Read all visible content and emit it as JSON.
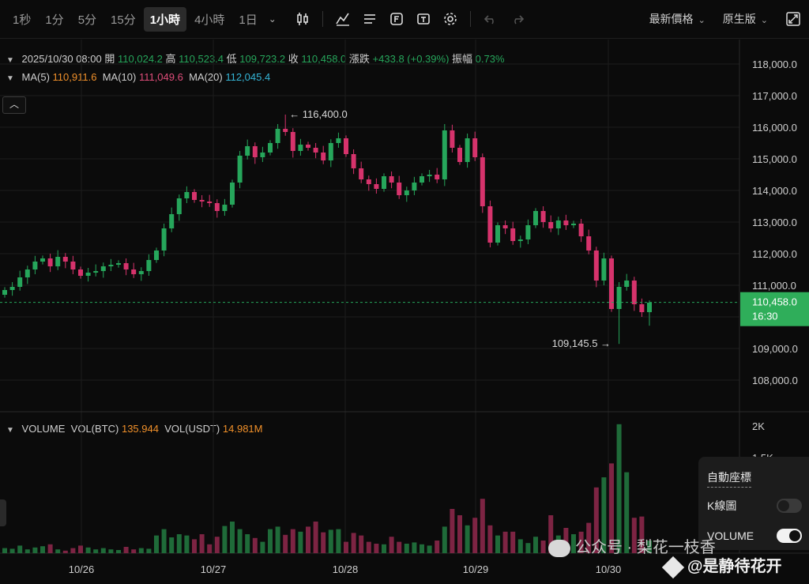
{
  "toolbar": {
    "timeframes": [
      "1秒",
      "1分",
      "5分",
      "15分",
      "1小時",
      "4小時",
      "1日"
    ],
    "active_index": 4,
    "price_type": "最新價格",
    "version": "原生版"
  },
  "info": {
    "datetime": "2025/10/30 08:00",
    "open_label": "開",
    "open": "110,024.2",
    "high_label": "高",
    "high": "110,523.4",
    "low_label": "低",
    "low": "109,723.2",
    "close_label": "收",
    "close": "110,458.0",
    "change_label": "漲跌",
    "change": "+433.8 (+0.39%)",
    "amp_label": "振幅",
    "amp": "0.73%",
    "ma5_label": "MA(5)",
    "ma5": "110,911.6",
    "ma10_label": "MA(10)",
    "ma10": "111,049.6",
    "ma20_label": "MA(20)",
    "ma20": "112,045.4",
    "vol_title": "VOLUME",
    "vol_btc_label": "VOL(BTC)",
    "vol_btc": "135.944",
    "vol_usdt_label": "VOL(USDT)",
    "vol_usdt": "14.981M"
  },
  "price_axis": [
    "118,000.0",
    "117,000.0",
    "116,000.0",
    "115,000.0",
    "114,000.0",
    "113,000.0",
    "112,000.0",
    "111,000.0",
    "109,000.0",
    "108,000.0"
  ],
  "price_axis_values": [
    118000,
    117000,
    116000,
    115000,
    114000,
    113000,
    112000,
    111000,
    109000,
    108000
  ],
  "current_price": "110,458.0",
  "countdown": "16:30",
  "high_marker": "116,400.0",
  "low_marker": "109,145.5",
  "volume_axis": [
    "2K",
    "1.5K"
  ],
  "date_labels": [
    "10/26",
    "10/27",
    "10/28",
    "10/29",
    "10/30"
  ],
  "settings": {
    "auto_scale": "自動座標",
    "kline_label": "K線圖",
    "kline_on": false,
    "volume_label": "VOLUME",
    "volume_on": true
  },
  "watermark": {
    "line1": "公众号 · 梨花一枝香",
    "line2": "@是静待花开"
  },
  "colors": {
    "up": "#26a65b",
    "down": "#d6336c",
    "volume_up": "#1f6b39",
    "volume_down": "#7d2443",
    "price_tag": "#2fae5a"
  },
  "chart_data": {
    "type": "candlestick",
    "interval": "1小時",
    "y_ticks": [
      108000,
      109000,
      110000,
      111000,
      112000,
      113000,
      114000,
      115000,
      116000,
      117000,
      118000
    ],
    "highest": 116400.0,
    "lowest": 109145.5,
    "last": 110458.0,
    "series_close": [
      110850,
      110950,
      111250,
      111500,
      111750,
      111850,
      111600,
      111900,
      111750,
      111500,
      111300,
      111400,
      111450,
      111600,
      111650,
      111700,
      111500,
      111350,
      111450,
      111800,
      112100,
      112800,
      113250,
      113750,
      113950,
      113700,
      113650,
      113600,
      113350,
      113550,
      114250,
      115100,
      115400,
      115050,
      115200,
      115500,
      115950,
      115850,
      115250,
      115450,
      115350,
      115200,
      114950,
      115500,
      115650,
      115150,
      114700,
      114350,
      114200,
      114050,
      114450,
      114250,
      113850,
      114000,
      114250,
      114450,
      114500,
      114350,
      115900,
      115350,
      114900,
      115650,
      115050,
      113500,
      112350,
      112900,
      112800,
      112400,
      112450,
      112900,
      113350,
      113000,
      112800,
      113050,
      112900,
      112950,
      112550,
      112100,
      111150,
      111850,
      110250,
      110950,
      111150,
      110400,
      110150,
      110450
    ],
    "volume_values": [
      80,
      70,
      120,
      60,
      90,
      110,
      140,
      60,
      40,
      80,
      120,
      90,
      60,
      80,
      60,
      50,
      100,
      60,
      80,
      70,
      280,
      380,
      250,
      300,
      280,
      220,
      300,
      140,
      260,
      430,
      500,
      380,
      300,
      240,
      180,
      380,
      420,
      290,
      380,
      340,
      420,
      500,
      330,
      370,
      380,
      180,
      320,
      280,
      180,
      150,
      140,
      260,
      180,
      150,
      170,
      140,
      120,
      200,
      420,
      700,
      600,
      440,
      560,
      860,
      440,
      280,
      340,
      340,
      220,
      160,
      260,
      200,
      600,
      280,
      400,
      300,
      340,
      480,
      1040,
      1200,
      1420,
      2040,
      1280,
      560,
      580,
      200
    ],
    "date_labels": [
      "10/26",
      "10/27",
      "10/28",
      "10/29",
      "10/30"
    ]
  }
}
